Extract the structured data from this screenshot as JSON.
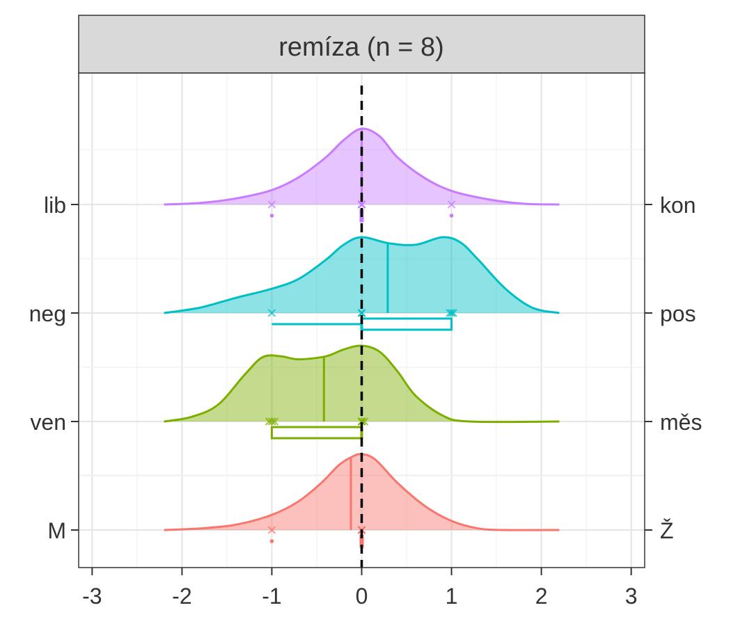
{
  "chart_data": {
    "type": "ridgeline",
    "facet_title": "remíza (n = 8)",
    "xlim": [
      -3.15,
      3.15
    ],
    "x_ticks": [
      -3,
      -2,
      -1,
      0,
      1,
      2,
      3
    ],
    "x_tick_labels": [
      "-3",
      "-2",
      "-1",
      "0",
      "1",
      "2",
      "3"
    ],
    "reference_line_x": 0,
    "grid": true,
    "density_range": [
      -2.2,
      2.2
    ],
    "rows": [
      {
        "left_label": "lib",
        "right_label": "kon",
        "color": "#C77CFF",
        "density": [
          [
            -2.2,
            0.0
          ],
          [
            -1.8,
            0.02
          ],
          [
            -1.4,
            0.08
          ],
          [
            -1.0,
            0.19
          ],
          [
            -0.7,
            0.36
          ],
          [
            -0.4,
            0.62
          ],
          [
            -0.2,
            0.85
          ],
          [
            0.0,
            1.0
          ],
          [
            0.2,
            0.9
          ],
          [
            0.4,
            0.62
          ],
          [
            0.7,
            0.35
          ],
          [
            1.0,
            0.18
          ],
          [
            1.4,
            0.07
          ],
          [
            1.8,
            0.01
          ],
          [
            2.2,
            0.0
          ]
        ],
        "median": 0.0,
        "points": [
          -1.0,
          0.0,
          0.0,
          0.0,
          0.0,
          0.0,
          0.0,
          1.0
        ],
        "box": {
          "q1": 0.0,
          "median": 0.0,
          "q3": 0.0,
          "whisker_low": 0.0,
          "whisker_high": 0.0
        },
        "outliers": [
          -1.0,
          1.0
        ]
      },
      {
        "left_label": "neg",
        "right_label": "pos",
        "color": "#00BFC4",
        "density": [
          [
            -2.2,
            0.0
          ],
          [
            -1.8,
            0.07
          ],
          [
            -1.4,
            0.2
          ],
          [
            -1.0,
            0.32
          ],
          [
            -0.7,
            0.45
          ],
          [
            -0.4,
            0.7
          ],
          [
            -0.2,
            0.9
          ],
          [
            0.0,
            1.0
          ],
          [
            0.3,
            0.92
          ],
          [
            0.6,
            0.9
          ],
          [
            0.9,
            1.0
          ],
          [
            1.1,
            0.93
          ],
          [
            1.3,
            0.7
          ],
          [
            1.6,
            0.32
          ],
          [
            1.9,
            0.07
          ],
          [
            2.2,
            0.0
          ]
        ],
        "median": 0.29,
        "points": [
          -1.0,
          0.0,
          0.0,
          0.0,
          0.98,
          1.0,
          1.02
        ],
        "box": {
          "q1": 0.0,
          "median": 0.0,
          "q3": 1.0,
          "whisker_low": -1.0,
          "whisker_high": 1.0
        },
        "outliers": []
      },
      {
        "left_label": "ven",
        "right_label": "měs",
        "color": "#7CAE00",
        "density": [
          [
            -2.2,
            0.0
          ],
          [
            -1.9,
            0.06
          ],
          [
            -1.6,
            0.22
          ],
          [
            -1.3,
            0.62
          ],
          [
            -1.1,
            0.85
          ],
          [
            -0.9,
            0.86
          ],
          [
            -0.7,
            0.82
          ],
          [
            -0.4,
            0.86
          ],
          [
            -0.2,
            0.95
          ],
          [
            0.0,
            1.0
          ],
          [
            0.2,
            0.92
          ],
          [
            0.4,
            0.66
          ],
          [
            0.6,
            0.34
          ],
          [
            0.9,
            0.08
          ],
          [
            1.2,
            0.0
          ],
          [
            2.2,
            0.0
          ]
        ],
        "median": -0.42,
        "points": [
          -1.03,
          -1.0,
          -0.97,
          0.0,
          0.0,
          0.0,
          0.03
        ],
        "box": {
          "q1": -1.0,
          "median": 0.0,
          "q3": 0.0,
          "whisker_low": -1.0,
          "whisker_high": 0.0
        },
        "outliers": []
      },
      {
        "left_label": "M",
        "right_label": "Ž",
        "color": "#F8766D",
        "density": [
          [
            -2.2,
            0.0
          ],
          [
            -1.8,
            0.02
          ],
          [
            -1.4,
            0.07
          ],
          [
            -1.0,
            0.2
          ],
          [
            -0.7,
            0.38
          ],
          [
            -0.45,
            0.62
          ],
          [
            -0.25,
            0.86
          ],
          [
            -0.1,
            0.97
          ],
          [
            0.0,
            1.0
          ],
          [
            0.15,
            0.93
          ],
          [
            0.4,
            0.62
          ],
          [
            0.7,
            0.32
          ],
          [
            1.0,
            0.12
          ],
          [
            1.3,
            0.02
          ],
          [
            1.6,
            0.0
          ],
          [
            2.2,
            0.0
          ]
        ],
        "median": -0.12,
        "points": [
          -1.0,
          0.0,
          0.0,
          0.0,
          0.0,
          0.0,
          0.0
        ],
        "box": {
          "q1": 0.0,
          "median": 0.0,
          "q3": 0.0,
          "whisker_low": 0.0,
          "whisker_high": 0.0
        },
        "outliers": [
          -1.0
        ]
      }
    ]
  }
}
